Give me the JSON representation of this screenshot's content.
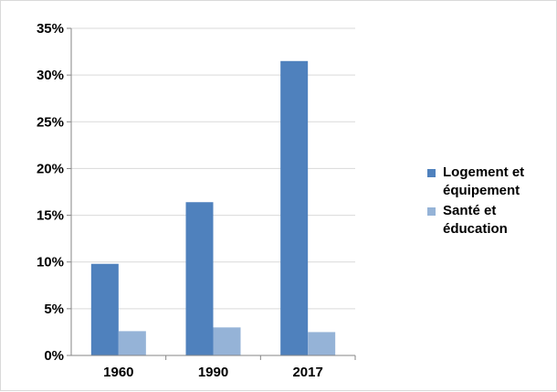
{
  "chart_data": {
    "type": "bar",
    "categories": [
      "1960",
      "1990",
      "2017"
    ],
    "series": [
      {
        "name": "Logement et équipement",
        "color": "#4f81bd",
        "values": [
          9.8,
          16.4,
          31.5
        ]
      },
      {
        "name": "Santé et éducation",
        "color": "#95b3d7",
        "values": [
          2.6,
          3.0,
          2.5
        ]
      }
    ],
    "ylim": [
      0,
      35
    ],
    "yticks": [
      0,
      5,
      10,
      15,
      20,
      25,
      30,
      35
    ],
    "ytick_labels": [
      "0%",
      "5%",
      "10%",
      "15%",
      "20%",
      "25%",
      "30%",
      "35%"
    ],
    "title": "",
    "xlabel": "",
    "ylabel": "",
    "grid": true,
    "legend_position": "right",
    "gridline_color": "#d9d9d9",
    "axis_color": "#868686"
  }
}
